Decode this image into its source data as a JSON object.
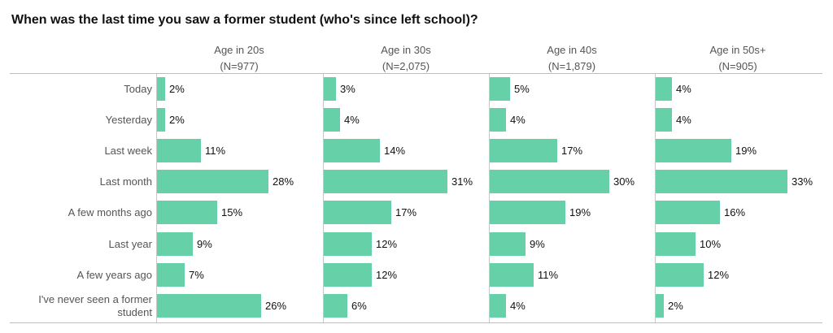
{
  "chart_data": {
    "type": "bar",
    "orientation": "horizontal",
    "title": "When was the last time you saw a former student (who's since left school)?",
    "categories": [
      "Today",
      "Yesterday",
      "Last week",
      "Last month",
      "A few months ago",
      "Last year",
      "A few years ago",
      "I've never seen a former student"
    ],
    "series": [
      {
        "name": "Age in 20s",
        "n": "(N=977)",
        "values": [
          2,
          2,
          11,
          28,
          15,
          9,
          7,
          26
        ]
      },
      {
        "name": "Age in 30s",
        "n": "(N=2,075)",
        "values": [
          3,
          4,
          14,
          31,
          17,
          12,
          12,
          6
        ]
      },
      {
        "name": "Age in 40s",
        "n": "(N=1,879)",
        "values": [
          5,
          4,
          17,
          30,
          19,
          9,
          11,
          4
        ]
      },
      {
        "name": "Age in 50s+",
        "n": "(N=905)",
        "values": [
          4,
          4,
          19,
          33,
          16,
          10,
          12,
          2
        ]
      }
    ],
    "value_suffix": "%",
    "xlim": [
      0,
      35
    ],
    "bar_color": "#66d1a8",
    "grid": false,
    "legend": "none"
  }
}
